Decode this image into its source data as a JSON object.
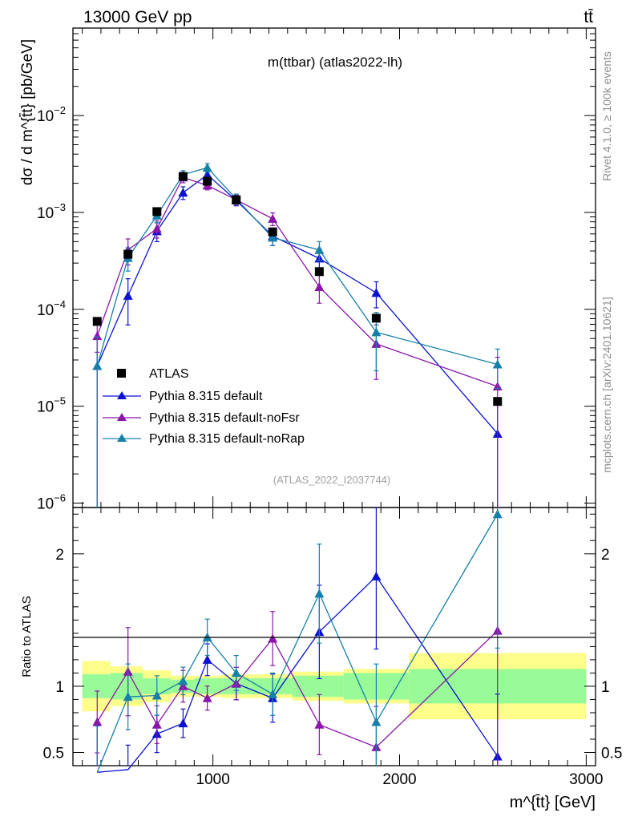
{
  "header": {
    "left": "13000 GeV pp",
    "right": "tt̄"
  },
  "side": {
    "rivet": "Rivet 4.1.0, ≥ 100k events",
    "mcplots": "mcplots.cern.ch [arXiv:2401.10621]"
  },
  "chart_data": {
    "type": "line",
    "title": "m(ttbar) (atlas2022-lh)",
    "analysis_id": "(ATLAS_2022_I2037744)",
    "xlabel": "m^{t̄t} [GeV]",
    "ylabel": "dσ / d m^{t̄t} [pb/GeV]",
    "ratio_ylabel": "Ratio to ATLAS",
    "xlim": [
      250,
      3050
    ],
    "ylim": [
      9e-07,
      0.08
    ],
    "ratio_ylim": [
      0.4,
      2.35
    ],
    "xticks": [
      1000,
      2000,
      3000
    ],
    "xtick_labels": [
      "1000",
      "2000",
      "3000"
    ],
    "yticks": [
      1e-06,
      1e-05,
      0.0001,
      0.001,
      0.01
    ],
    "ytick_labels": [
      {
        "base": "10",
        "exp": "−6"
      },
      {
        "base": "10",
        "exp": "−5"
      },
      {
        "base": "10",
        "exp": "−4"
      },
      {
        "base": "10",
        "exp": "−3"
      },
      {
        "base": "10",
        "exp": "−2"
      }
    ],
    "ratio_yticks": [
      0.5,
      1,
      2
    ],
    "ratio_ytick_labels": [
      "0.5",
      "1",
      "2"
    ],
    "bins": [
      [
        300,
        450
      ],
      [
        450,
        625
      ],
      [
        625,
        775
      ],
      [
        775,
        900
      ],
      [
        900,
        1050
      ],
      [
        1050,
        1200
      ],
      [
        1200,
        1425
      ],
      [
        1425,
        1700
      ],
      [
        1700,
        2050
      ],
      [
        2050,
        3000
      ]
    ],
    "x": [
      380,
      545,
      700,
      840,
      970,
      1125,
      1320,
      1570,
      1875,
      2525
    ],
    "reference": {
      "name": "ATLAS",
      "values": [
        7.5e-05,
        0.00037,
        0.00102,
        0.00235,
        0.0021,
        0.00135,
        0.00063,
        0.000245,
        8.1e-05,
        1.12e-05
      ],
      "band_inner": [
        0.09,
        0.1,
        0.06,
        0.05,
        0.06,
        0.06,
        0.06,
        0.08,
        0.1,
        0.13
      ],
      "band_outer": [
        0.19,
        0.15,
        0.12,
        0.08,
        0.08,
        0.09,
        0.09,
        0.11,
        0.13,
        0.25
      ]
    },
    "series": [
      {
        "name": "Pythia 8.315 default",
        "color": "#0b12d1",
        "values": [
          2.6e-05,
          0.000138,
          0.00064,
          0.0016,
          0.00245,
          0.00133,
          0.00057,
          0.000335,
          0.000148,
          5.2e-06
        ],
        "rel_err": [
          1.0,
          0.5,
          0.22,
          0.15,
          0.1,
          0.12,
          0.2,
          0.25,
          0.3,
          1.0
        ],
        "ratio": [
          0.35,
          0.37,
          0.64,
          0.72,
          1.2,
          1.02,
          0.91,
          1.41,
          1.83,
          0.47
        ]
      },
      {
        "name": "Pythia 8.315 default-noFsr",
        "color": "#8a16aa",
        "values": [
          5.3e-05,
          0.00041,
          0.00068,
          0.0023,
          0.0019,
          0.00135,
          0.00086,
          0.00017,
          4.4e-05,
          1.6e-05
        ],
        "rel_err": [
          0.32,
          0.3,
          0.2,
          0.12,
          0.1,
          0.12,
          0.15,
          0.32,
          0.57,
          1.0
        ],
        "ratio": [
          0.73,
          1.11,
          0.71,
          1.0,
          0.91,
          1.02,
          1.36,
          0.71,
          0.54,
          1.42
        ]
      },
      {
        "name": "Pythia 8.315 default-noRap",
        "color": "#1680a8",
        "values": [
          2.6e-05,
          0.00034,
          0.00093,
          0.00245,
          0.0029,
          0.00138,
          0.00055,
          0.00041,
          5.8e-05,
          2.7e-05
        ],
        "rel_err": [
          1.0,
          0.27,
          0.16,
          0.1,
          0.1,
          0.12,
          0.17,
          0.22,
          0.6,
          0.44
        ],
        "ratio": [
          0.35,
          0.92,
          0.93,
          1.04,
          1.37,
          1.1,
          0.94,
          1.7,
          0.73,
          2.3
        ]
      }
    ],
    "legend": {
      "placement": "lower-left"
    }
  }
}
